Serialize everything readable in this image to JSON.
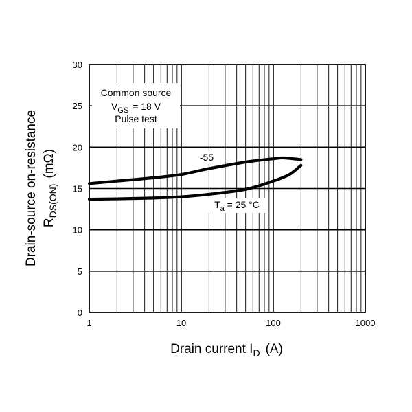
{
  "chart_data": {
    "type": "line",
    "x_scale": "log",
    "xlim": [
      1,
      1000
    ],
    "ylim": [
      0,
      30
    ],
    "grid": true,
    "x_ticks": [
      "1",
      "10",
      "100",
      "1000"
    ],
    "y_ticks": [
      "0",
      "5",
      "10",
      "15",
      "20",
      "25",
      "30"
    ],
    "xlabel": {
      "main": "Drain current  I",
      "sub": "D",
      "unit": "(A)"
    },
    "ylabel": {
      "line1": "Drain-source on-resistance",
      "line2_main": "R",
      "line2_sub": "DS(ON)",
      "line2_unit": "(mΩ)"
    },
    "conditions": {
      "line1": "Common source",
      "line2_main": "V",
      "line2_sub": "GS",
      "line2_rest": "= 18 V",
      "line3": "Pulse test"
    },
    "series": [
      {
        "name": "-55",
        "label": "-55",
        "x": [
          1,
          2,
          5,
          10,
          20,
          50,
          100,
          130,
          200
        ],
        "y": [
          15.6,
          15.9,
          16.3,
          16.7,
          17.4,
          18.2,
          18.6,
          18.7,
          18.5
        ]
      },
      {
        "name": "Ta = 25 °C",
        "label_main": "T",
        "label_sub": "a",
        "label_rest": " = 25 °C",
        "x": [
          1,
          2,
          5,
          10,
          20,
          50,
          100,
          150,
          200
        ],
        "y": [
          13.7,
          13.75,
          13.85,
          14.0,
          14.3,
          14.9,
          15.9,
          16.7,
          17.8
        ]
      }
    ]
  }
}
